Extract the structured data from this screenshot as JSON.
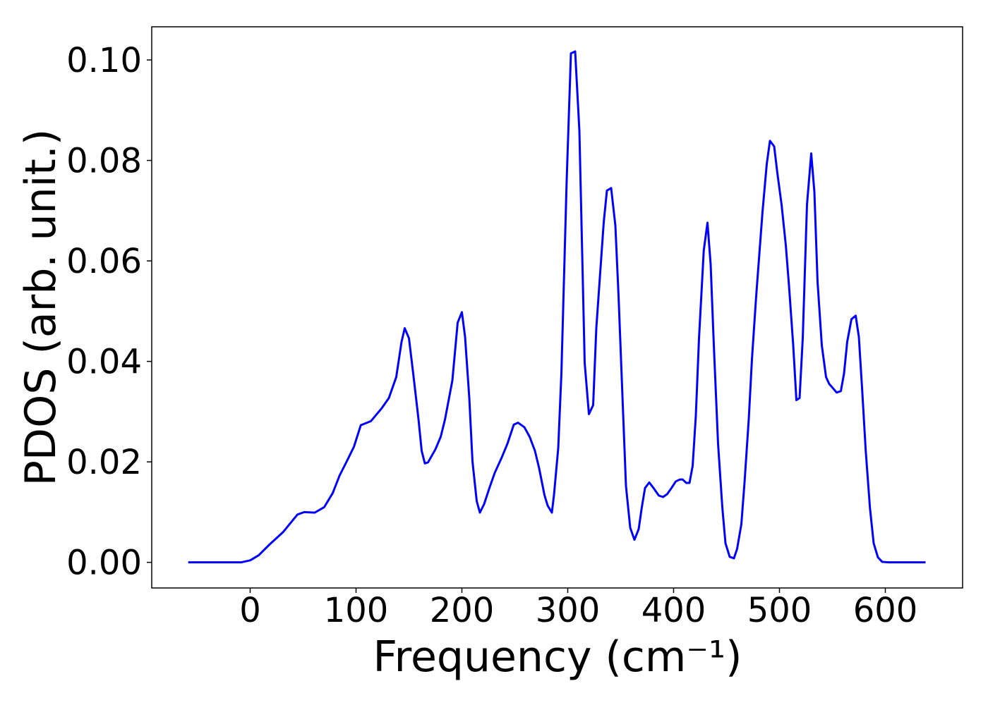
{
  "chart_data": {
    "type": "line",
    "xlabel": "Frequency (cm⁻¹)",
    "ylabel": "PDOS (arb. unit.)",
    "xlim": [
      -93,
      673
    ],
    "ylim": [
      -0.0051,
      0.1066
    ],
    "xticks": [
      0,
      100,
      200,
      300,
      400,
      500,
      600
    ],
    "yticks": [
      {
        "value": 0,
        "label": "0.00"
      },
      {
        "value": 0.02,
        "label": "0.02"
      },
      {
        "value": 0.04,
        "label": "0.04"
      },
      {
        "value": 0.06,
        "label": "0.06"
      },
      {
        "value": 0.08,
        "label": "0.08"
      },
      {
        "value": 0.1,
        "label": "0.10"
      }
    ],
    "grid": false,
    "series": [
      {
        "color": "#0000ff",
        "x": [
          -58.5,
          -8.6,
          0,
          8,
          18,
          31,
          44.6,
          51,
          61,
          70,
          78,
          84.5,
          91,
          98,
          104.5,
          114,
          124,
          131,
          138,
          143,
          146,
          150,
          154,
          159,
          162,
          165,
          168,
          175,
          180,
          184,
          191,
          196,
          200,
          203,
          207,
          210,
          214,
          217,
          221,
          226,
          231,
          237.5,
          243,
          249,
          253,
          259,
          264,
          269,
          273,
          278,
          281,
          285,
          287,
          291,
          294,
          299,
          303,
          307,
          311,
          316,
          320,
          324,
          327,
          334,
          337,
          341,
          345,
          348,
          352,
          355,
          359,
          363,
          367,
          370,
          373,
          377,
          381,
          386,
          390,
          394,
          398,
          402,
          406,
          408.5,
          412,
          415,
          418,
          421,
          424,
          428.5,
          432,
          435,
          438,
          442,
          446,
          449,
          453,
          457,
          460,
          464,
          467,
          471,
          474,
          478,
          484,
          488,
          491,
          495,
          498,
          502,
          506,
          509,
          513,
          516,
          519,
          522,
          526,
          530,
          533,
          536,
          540,
          544,
          547,
          550,
          554,
          558,
          561,
          564,
          568,
          572,
          575,
          578,
          581.5,
          585.5,
          589,
          593,
          597,
          603,
          638
        ],
        "values": [
          0,
          0,
          0.0004,
          0.0014,
          0.0035,
          0.006,
          0.0095,
          0.01,
          0.0099,
          0.011,
          0.0138,
          0.0173,
          0.02,
          0.023,
          0.0273,
          0.0281,
          0.0306,
          0.0327,
          0.0369,
          0.0439,
          0.0466,
          0.0446,
          0.0376,
          0.0285,
          0.0222,
          0.0197,
          0.0199,
          0.0225,
          0.025,
          0.0284,
          0.0362,
          0.0477,
          0.0498,
          0.0449,
          0.0327,
          0.0201,
          0.0122,
          0.0099,
          0.0116,
          0.0148,
          0.0178,
          0.0208,
          0.0236,
          0.0274,
          0.0278,
          0.0269,
          0.025,
          0.0222,
          0.0187,
          0.0134,
          0.0113,
          0.0099,
          0.0134,
          0.0227,
          0.0376,
          0.0761,
          0.1013,
          0.1017,
          0.0859,
          0.0397,
          0.0295,
          0.0313,
          0.0467,
          0.0677,
          0.074,
          0.0745,
          0.067,
          0.053,
          0.0313,
          0.0152,
          0.0069,
          0.0045,
          0.0066,
          0.011,
          0.0148,
          0.0159,
          0.0148,
          0.0133,
          0.013,
          0.0136,
          0.0148,
          0.0161,
          0.0165,
          0.0165,
          0.0158,
          0.0158,
          0.0192,
          0.0292,
          0.0446,
          0.0621,
          0.0676,
          0.0593,
          0.0432,
          0.0236,
          0.011,
          0.0038,
          0.0011,
          0.0008,
          0.0027,
          0.0076,
          0.0159,
          0.0285,
          0.0404,
          0.053,
          0.0698,
          0.0793,
          0.0839,
          0.0828,
          0.0775,
          0.0712,
          0.0631,
          0.0551,
          0.0432,
          0.0323,
          0.0327,
          0.0446,
          0.0712,
          0.0814,
          0.0737,
          0.0558,
          0.0432,
          0.0369,
          0.0355,
          0.0348,
          0.0338,
          0.0341,
          0.0376,
          0.0439,
          0.0484,
          0.0491,
          0.0449,
          0.0348,
          0.0222,
          0.0108,
          0.0038,
          0.001,
          0.0001,
          0,
          0
        ]
      }
    ]
  }
}
